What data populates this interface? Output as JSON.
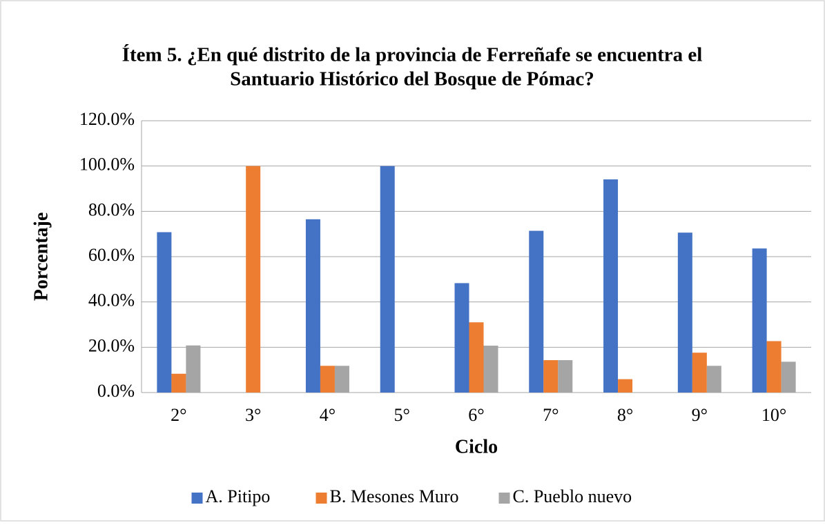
{
  "chart_data": {
    "type": "bar",
    "title": "Ítem 5. ¿En qué distrito de la provincia de Ferreñafe se encuentra el",
    "subtitle": "Santuario Histórico del Bosque de Pómac?",
    "x_label": "Ciclo",
    "y_label": "Porcentaje",
    "categories": [
      "2°",
      "3°",
      "4°",
      "5°",
      "6°",
      "7°",
      "8°",
      "9°",
      "10°"
    ],
    "series": [
      {
        "name": "A. Pitipo",
        "color": "#4472c4",
        "values": [
          70.8,
          0,
          76.5,
          100,
          48.3,
          71.4,
          94.1,
          70.6,
          63.6
        ]
      },
      {
        "name": "B. Mesones Muro",
        "color": "#ed7d31",
        "values": [
          8.3,
          100,
          11.8,
          0,
          31.0,
          14.3,
          5.9,
          17.6,
          22.7
        ]
      },
      {
        "name": "C. Pueblo nuevo",
        "color": "#a5a5a5",
        "values": [
          20.8,
          0,
          11.8,
          0,
          20.7,
          14.3,
          0,
          11.8,
          13.6
        ]
      }
    ],
    "ylim": [
      0,
      120
    ],
    "yticks": [
      {
        "value": 0,
        "label": "0.0%"
      },
      {
        "value": 20,
        "label": "20.0%"
      },
      {
        "value": 40,
        "label": "40.0%"
      },
      {
        "value": 60,
        "label": "60.0%"
      },
      {
        "value": 80,
        "label": "80.0%"
      },
      {
        "value": 100,
        "label": "100.0%"
      },
      {
        "value": 120,
        "label": "120.0%"
      }
    ],
    "grid": true,
    "legend": "bottom"
  }
}
